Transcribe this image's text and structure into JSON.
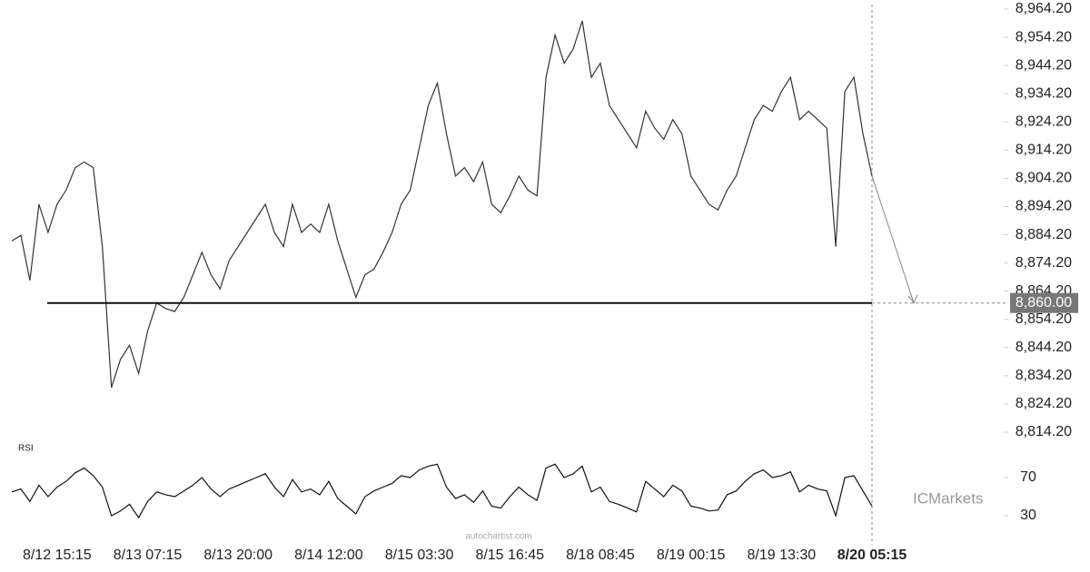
{
  "chart_data": {
    "type": "line",
    "categories": [
      null,
      null,
      null,
      null,
      null,
      "8/12 15:15",
      null,
      null,
      null,
      null,
      null,
      null,
      null,
      null,
      null,
      "8/13 07:15",
      null,
      null,
      null,
      null,
      null,
      null,
      null,
      null,
      null,
      "8/13 20:00",
      null,
      null,
      null,
      null,
      null,
      null,
      null,
      null,
      null,
      "8/14 12:00",
      null,
      null,
      null,
      null,
      null,
      null,
      null,
      null,
      null,
      "8/15 03:30",
      null,
      null,
      null,
      null,
      null,
      null,
      null,
      null,
      null,
      "8/15 16:45",
      null,
      null,
      null,
      null,
      null,
      null,
      null,
      null,
      null,
      "8/18 08:45",
      null,
      null,
      null,
      null,
      null,
      null,
      null,
      null,
      null,
      "8/19 00:15",
      null,
      null,
      null,
      null,
      null,
      null,
      null,
      null,
      null,
      "8/19 13:30",
      null,
      null,
      null,
      null,
      null,
      null,
      null,
      null,
      null,
      "8/20 05:15"
    ],
    "series": [
      {
        "name": "Price",
        "color": "#333333",
        "values": [
          8882,
          8884,
          8868,
          8895,
          8885,
          8895,
          8900,
          8908,
          8910,
          8908,
          8880,
          8830,
          8840,
          8845,
          8835,
          8850,
          8860,
          8858,
          8857,
          8862,
          8870,
          8878,
          8870,
          8865,
          8875,
          8880,
          8885,
          8890,
          8895,
          8885,
          8880,
          8895,
          8885,
          8888,
          8885,
          8895,
          8882,
          8872,
          8862,
          8870,
          8872,
          8878,
          8885,
          8895,
          8900,
          8915,
          8930,
          8938,
          8920,
          8905,
          8908,
          8903,
          8910,
          8895,
          8892,
          8898,
          8905,
          8900,
          8898,
          8940,
          8955,
          8945,
          8950,
          8960,
          8940,
          8945,
          8930,
          8925,
          8920,
          8915,
          8928,
          8922,
          8918,
          8925,
          8920,
          8905,
          8900,
          8895,
          8893,
          8900,
          8905,
          8915,
          8925,
          8930,
          8928,
          8935,
          8940,
          8925,
          8928,
          8925,
          8922,
          8880,
          8935,
          8940,
          8920,
          8905
        ]
      },
      {
        "name": "RSI",
        "color": "#111111",
        "axis": "y2",
        "values": [
          55,
          58,
          45,
          62,
          50,
          60,
          66,
          75,
          80,
          72,
          60,
          30,
          35,
          42,
          28,
          45,
          55,
          52,
          50,
          56,
          62,
          70,
          58,
          50,
          58,
          62,
          66,
          70,
          74,
          60,
          50,
          68,
          55,
          58,
          52,
          66,
          48,
          40,
          32,
          50,
          56,
          60,
          64,
          72,
          70,
          78,
          82,
          84,
          60,
          48,
          52,
          44,
          56,
          40,
          38,
          50,
          60,
          52,
          46,
          80,
          84,
          70,
          74,
          82,
          55,
          60,
          45,
          42,
          38,
          34,
          66,
          58,
          50,
          62,
          56,
          40,
          38,
          35,
          36,
          52,
          56,
          66,
          74,
          78,
          70,
          72,
          76,
          55,
          62,
          58,
          56,
          30,
          70,
          72,
          56,
          40
        ]
      }
    ],
    "ylim": [
      8814.2,
      8964.2
    ],
    "yticks": [
      {
        "value": 8964.2,
        "label": "8,964.20"
      },
      {
        "value": 8954.2,
        "label": "8,954.20"
      },
      {
        "value": 8944.2,
        "label": "8,944.20"
      },
      {
        "value": 8934.2,
        "label": "8,934.20"
      },
      {
        "value": 8924.2,
        "label": "8,924.20"
      },
      {
        "value": 8914.2,
        "label": "8,914.20"
      },
      {
        "value": 8904.2,
        "label": "8,904.20"
      },
      {
        "value": 8894.2,
        "label": "8,894.20"
      },
      {
        "value": 8884.2,
        "label": "8,884.20"
      },
      {
        "value": 8874.2,
        "label": "8,874.20"
      },
      {
        "value": 8864.2,
        "label": "8,864.20"
      },
      {
        "value": 8854.2,
        "label": "8,854.20"
      },
      {
        "value": 8844.2,
        "label": "8,844.20"
      },
      {
        "value": 8834.2,
        "label": "8,834.20"
      },
      {
        "value": 8824.2,
        "label": "8,824.20"
      },
      {
        "value": 8814.2,
        "label": "8,814.20"
      }
    ],
    "y2lim": [
      0,
      100
    ],
    "y2ticks": [
      70,
      30
    ],
    "y2label": "RSI",
    "level": {
      "value": 8860,
      "label": "8,860.00"
    },
    "watermark": "autochartist.com",
    "brand": "ICMarkets"
  }
}
